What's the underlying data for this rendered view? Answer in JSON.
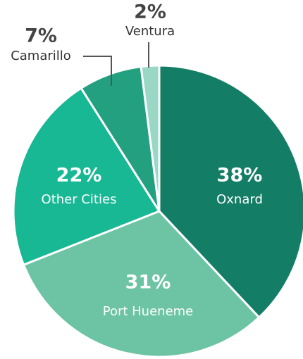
{
  "chart_data": {
    "type": "pie",
    "categories": [
      "Oxnard",
      "Port Hueneme",
      "Other Cities",
      "Camarillo",
      "Ventura"
    ],
    "values": [
      38,
      31,
      22,
      7,
      2
    ],
    "value_labels": [
      "38%",
      "31%",
      "22%",
      "7%",
      "2%"
    ],
    "colors": [
      "#137d66",
      "#6cc4a4",
      "#18b894",
      "#22a07f",
      "#9ad7c4"
    ]
  }
}
